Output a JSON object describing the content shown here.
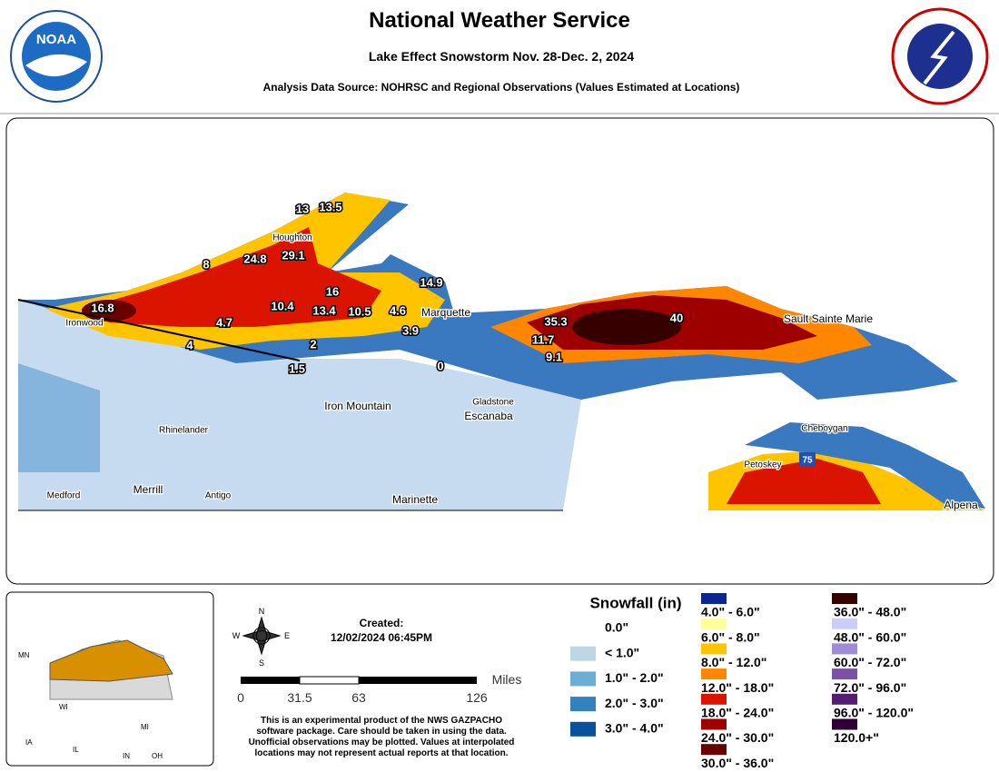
{
  "header": {
    "title": "National Weather Service",
    "subtitle": "Lake Effect Snowstorm Nov. 28-Dec. 2, 2024",
    "source": "Analysis Data Source: NOHRSC and Regional Observations (Values Estimated at Locations)",
    "logo": "NOAA"
  },
  "map": {
    "observations": [
      16.8,
      13,
      13.5,
      29.1,
      24.8,
      8,
      10.4,
      16,
      13.4,
      10.5,
      4.6,
      14.9,
      4.7,
      3.9,
      4,
      2,
      1.5,
      0,
      35.3,
      11.7,
      9.1,
      40
    ],
    "places": [
      "Houghton",
      "Ironwood",
      "Marquette",
      "Sault Sainte Marie",
      "Iron Mountain",
      "Gladstone",
      "Escanaba",
      "Rhinelander",
      "Cheboygan",
      "Petoskey",
      "Merrill",
      "Antigo",
      "Medford",
      "Marinette",
      "Alpena"
    ],
    "highway": "75"
  },
  "inset": {
    "labels": [
      "MN",
      "WI",
      "MI",
      "IA",
      "IL",
      "IN",
      "OH"
    ]
  },
  "compass": {
    "n": "N",
    "s": "S",
    "e": "E",
    "w": "W"
  },
  "created": {
    "label": "Created:",
    "date": "12/02/2024 06:45PM"
  },
  "scale": {
    "unit": "Miles",
    "ticks": [
      0,
      31.5,
      63,
      126
    ]
  },
  "disclaimer": [
    "This is an experimental product of the NWS GAZPACHO",
    "software package. Care should be taken in using the data.",
    "Unofficial observations may be plotted. Values at interpolated",
    "locations may not represent actual reports at that location."
  ],
  "legend": {
    "title": "Snowfall (in)",
    "items": [
      {
        "label": "0.0\"",
        "color": "#ffffff"
      },
      {
        "label": "< 1.0\"",
        "color": "#bdd7e7"
      },
      {
        "label": "1.0\" - 2.0\"",
        "color": "#6baed6"
      },
      {
        "label": "2.0\" - 3.0\"",
        "color": "#3182bd"
      },
      {
        "label": "3.0\" - 4.0\"",
        "color": "#08519c"
      },
      {
        "label": "4.0\" - 6.0\"",
        "color": "#082694"
      },
      {
        "label": "6.0\" - 8.0\"",
        "color": "#ffff96"
      },
      {
        "label": "8.0\" - 12.0\"",
        "color": "#ffc400"
      },
      {
        "label": "12.0\" - 18.0\"",
        "color": "#ff8700"
      },
      {
        "label": "18.0\" - 24.0\"",
        "color": "#db1400"
      },
      {
        "label": "24.0\" - 30.0\"",
        "color": "#9e0000"
      },
      {
        "label": "30.0\" - 36.0\"",
        "color": "#690000"
      },
      {
        "label": "36.0\" - 48.0\"",
        "color": "#360000"
      },
      {
        "label": "48.0\" - 60.0\"",
        "color": "#ccccff"
      },
      {
        "label": "60.0\" - 72.0\"",
        "color": "#9f8cd8"
      },
      {
        "label": "72.0\" - 96.0\"",
        "color": "#7c52a5"
      },
      {
        "label": "96.0\" - 120.0\"",
        "color": "#561c72"
      },
      {
        "label": "120.0+\"",
        "color": "#2e0033"
      }
    ]
  }
}
